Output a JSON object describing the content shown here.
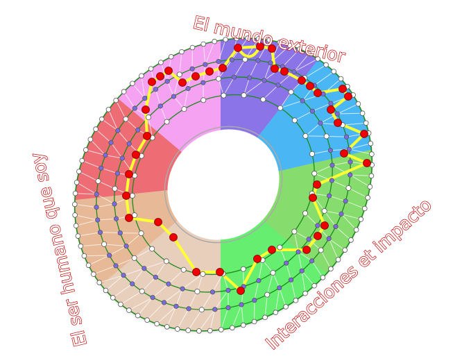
{
  "labels": {
    "top": "El mundo exterior",
    "left": "El ser humano que soy",
    "right": "Interacciones et impacto"
  },
  "colors": {
    "sectors": [
      "#8a74e8",
      "#4ab6f4",
      "#86dc6c",
      "#66ee70",
      "#e8cfbc",
      "#e8b996",
      "#ee6c74",
      "#f5a2f2"
    ],
    "ring_lines": "#1a8a1a",
    "path": "#ffff33",
    "path_nodes": "#ee0000",
    "inner_nodes": "#7b6be0",
    "outer_nodes": "#ffffff",
    "label_outline": "#c40000"
  }
}
